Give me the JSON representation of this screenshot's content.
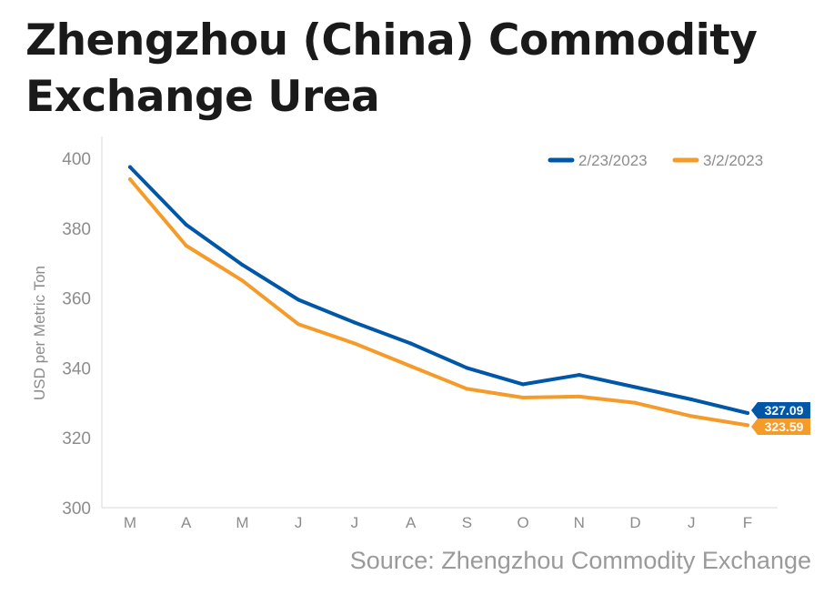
{
  "title_line1": "Zhengzhou (China) Commodity",
  "title_line2": "Exchange Urea",
  "source": "Source: Zhengzhou Commodity Exchange",
  "chart_data": {
    "type": "line",
    "title": "Zhengzhou (China) Commodity Exchange Urea",
    "ylabel": "USD per Metric Ton",
    "xlabel": "",
    "ylim": [
      300,
      400
    ],
    "yticks": [
      300,
      320,
      340,
      360,
      380,
      400
    ],
    "categories": [
      "M",
      "A",
      "M",
      "J",
      "J",
      "A",
      "S",
      "O",
      "N",
      "D",
      "J",
      "F"
    ],
    "grid": false,
    "legend": "top-right",
    "series": [
      {
        "name": "2/23/2023",
        "color": "#0057a8",
        "values": [
          397.5,
          381,
          369.5,
          359.5,
          353,
          347,
          340,
          335.3,
          338,
          334.5,
          331,
          327.09
        ],
        "end_label": "327.09"
      },
      {
        "name": "3/2/2023",
        "color": "#f59b2a",
        "values": [
          394,
          375,
          365,
          352.5,
          347,
          340.5,
          334,
          331.5,
          331.8,
          330,
          326.2,
          323.59
        ],
        "end_label": "323.59"
      }
    ]
  }
}
